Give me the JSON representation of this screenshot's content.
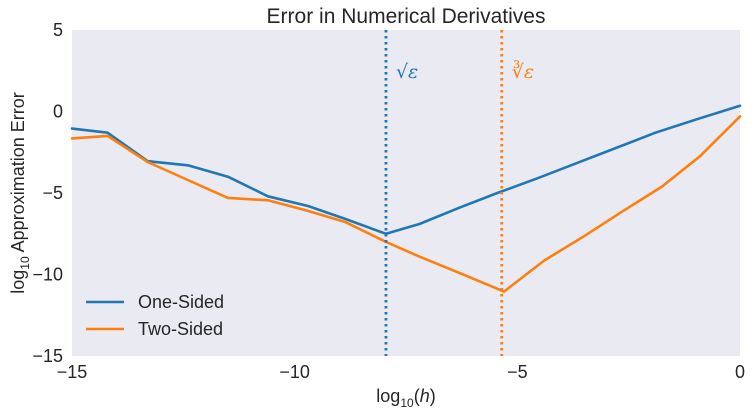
{
  "chart_data": {
    "type": "line",
    "title": "Error in Numerical Derivatives",
    "xlabel": {
      "prefix": "log",
      "sub": "10",
      "suffix_italic": "h"
    },
    "ylabel": {
      "prefix": "log",
      "sub": "10",
      "suffix": " Approximation Error"
    },
    "xlim": [
      -15,
      0
    ],
    "ylim": [
      -15,
      5
    ],
    "xticks": [
      -15,
      -10,
      -5,
      0
    ],
    "yticks": [
      -15,
      -10,
      -5,
      0,
      5
    ],
    "xtick_labels": [
      "−15",
      "−10",
      "−5",
      "0"
    ],
    "ytick_labels": [
      "−15",
      "−10",
      "−5",
      "0",
      "5"
    ],
    "grid": false,
    "background_color": "#eaeaf2",
    "legend_placement": "lower-left",
    "series": [
      {
        "name": "One-Sided",
        "color": "#1f77b4",
        "x": [
          -15,
          -14.2,
          -13.3,
          -12.4,
          -11.5,
          -10.6,
          -9.7,
          -8.85,
          -7.95,
          -7.2,
          -6.3,
          -5.45,
          -4.55,
          -3.65,
          -2.75,
          -1.9,
          -1.0,
          0
        ],
        "y": [
          -1.05,
          -1.3,
          -3.05,
          -3.3,
          -4.0,
          -5.2,
          -5.8,
          -6.6,
          -7.5,
          -6.9,
          -5.9,
          -5.0,
          -4.1,
          -3.15,
          -2.2,
          -1.3,
          -0.5,
          0.35
        ]
      },
      {
        "name": "Two-Sided",
        "color": "#ff7f0e",
        "x": [
          -15,
          -14.2,
          -13.3,
          -12.4,
          -11.5,
          -10.6,
          -9.7,
          -8.85,
          -7.95,
          -7.2,
          -6.3,
          -5.3,
          -4.4,
          -3.5,
          -2.65,
          -1.75,
          -0.9,
          0
        ],
        "y": [
          -1.65,
          -1.5,
          -3.1,
          -4.2,
          -5.3,
          -5.45,
          -6.1,
          -6.8,
          -8.0,
          -8.9,
          -9.9,
          -11.05,
          -9.15,
          -7.65,
          -6.15,
          -4.6,
          -2.75,
          -0.3
        ]
      }
    ],
    "vlines": [
      {
        "x": -7.95,
        "color": "#1f77b4",
        "style": "dotted",
        "label": "√ε"
      },
      {
        "x": -5.35,
        "color": "#ff7f0e",
        "style": "dotted",
        "label": "∛ε"
      }
    ]
  }
}
